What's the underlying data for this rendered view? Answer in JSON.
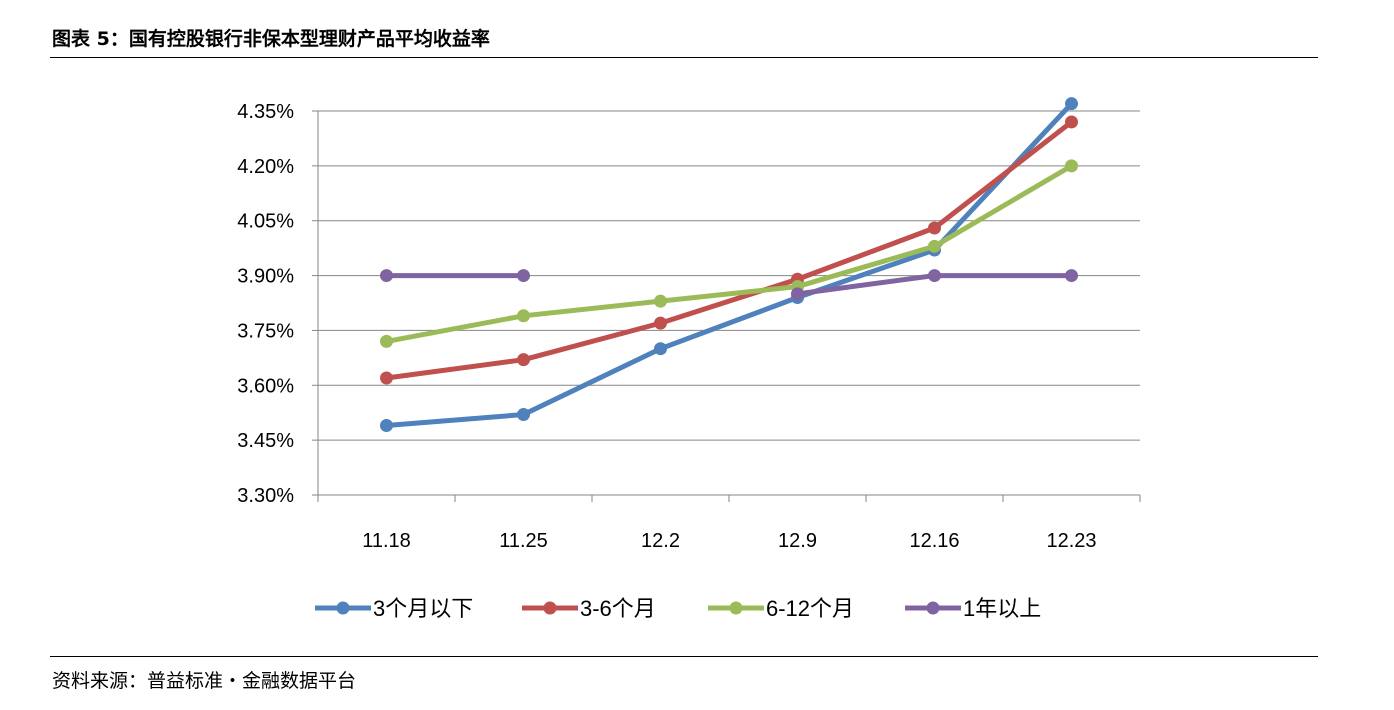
{
  "title": "图表 5：国有控股银行非保本型理财产品平均收益率",
  "source": "资料来源：普益标准・金融数据平台",
  "chart_data": {
    "type": "line",
    "title": "图表 5：国有控股银行非保本型理财产品平均收益率",
    "xlabel": "",
    "ylabel": "",
    "categories": [
      "11.18",
      "11.25",
      "12.2",
      "12.9",
      "12.16",
      "12.23"
    ],
    "ylim": [
      3.3,
      4.35
    ],
    "yticks": [
      "3.30%",
      "3.45%",
      "3.60%",
      "3.75%",
      "3.90%",
      "4.05%",
      "4.20%",
      "4.35%"
    ],
    "ytick_values": [
      3.3,
      3.45,
      3.6,
      3.75,
      3.9,
      4.05,
      4.2,
      4.35
    ],
    "grid": true,
    "legend_position": "bottom",
    "series": [
      {
        "name": "3个月以下",
        "color": "#4f81bd",
        "values": [
          3.49,
          3.52,
          3.7,
          3.84,
          3.97,
          4.37
        ]
      },
      {
        "name": "3-6个月",
        "color": "#c0504d",
        "values": [
          3.62,
          3.67,
          3.77,
          3.89,
          4.03,
          4.32
        ]
      },
      {
        "name": "6-12个月",
        "color": "#9bbb59",
        "values": [
          3.72,
          3.79,
          3.83,
          3.87,
          3.98,
          4.2
        ]
      },
      {
        "name": "1年以上",
        "color": "#8064a2",
        "values": [
          3.9,
          3.9,
          null,
          3.85,
          3.9,
          3.9
        ]
      }
    ]
  }
}
